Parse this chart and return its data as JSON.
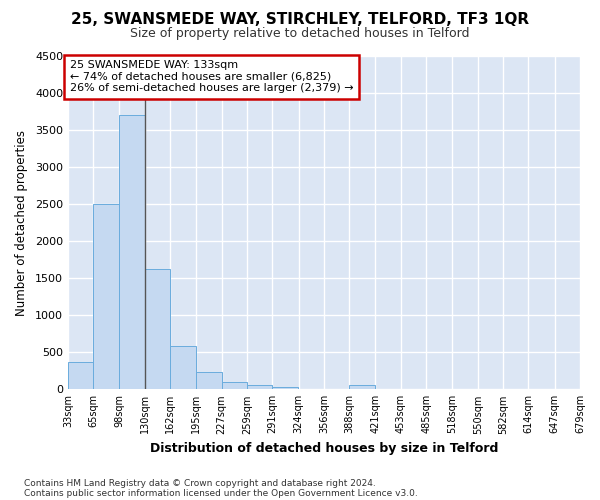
{
  "title1": "25, SWANSMEDE WAY, STIRCHLEY, TELFORD, TF3 1QR",
  "title2": "Size of property relative to detached houses in Telford",
  "xlabel": "Distribution of detached houses by size in Telford",
  "ylabel": "Number of detached properties",
  "footnote1": "Contains HM Land Registry data © Crown copyright and database right 2024.",
  "footnote2": "Contains public sector information licensed under the Open Government Licence v3.0.",
  "annotation_line1": "25 SWANSMEDE WAY: 133sqm",
  "annotation_line2": "← 74% of detached houses are smaller (6,825)",
  "annotation_line3": "26% of semi-detached houses are larger (2,379) →",
  "bin_edges": [
    33,
    65,
    98,
    130,
    162,
    195,
    227,
    259,
    291,
    324,
    356,
    388,
    421,
    453,
    485,
    518,
    550,
    582,
    614,
    647,
    679
  ],
  "bar_heights": [
    370,
    2510,
    3710,
    1630,
    590,
    230,
    105,
    60,
    35,
    0,
    0,
    55,
    0,
    0,
    0,
    0,
    0,
    0,
    0,
    0
  ],
  "bar_color": "#c5d9f1",
  "bar_edge_color": "#6aacdd",
  "background_color": "#dce6f4",
  "grid_color": "#ffffff",
  "annotation_box_color": "#cc0000",
  "ylim": [
    0,
    4500
  ],
  "yticks": [
    0,
    500,
    1000,
    1500,
    2000,
    2500,
    3000,
    3500,
    4000,
    4500
  ],
  "tick_labels": [
    "33sqm",
    "65sqm",
    "98sqm",
    "130sqm",
    "162sqm",
    "195sqm",
    "227sqm",
    "259sqm",
    "291sqm",
    "324sqm",
    "356sqm",
    "388sqm",
    "421sqm",
    "453sqm",
    "485sqm",
    "518sqm",
    "550sqm",
    "582sqm",
    "614sqm",
    "647sqm",
    "679sqm"
  ],
  "vline_x": 130,
  "vline_color": "#555555"
}
